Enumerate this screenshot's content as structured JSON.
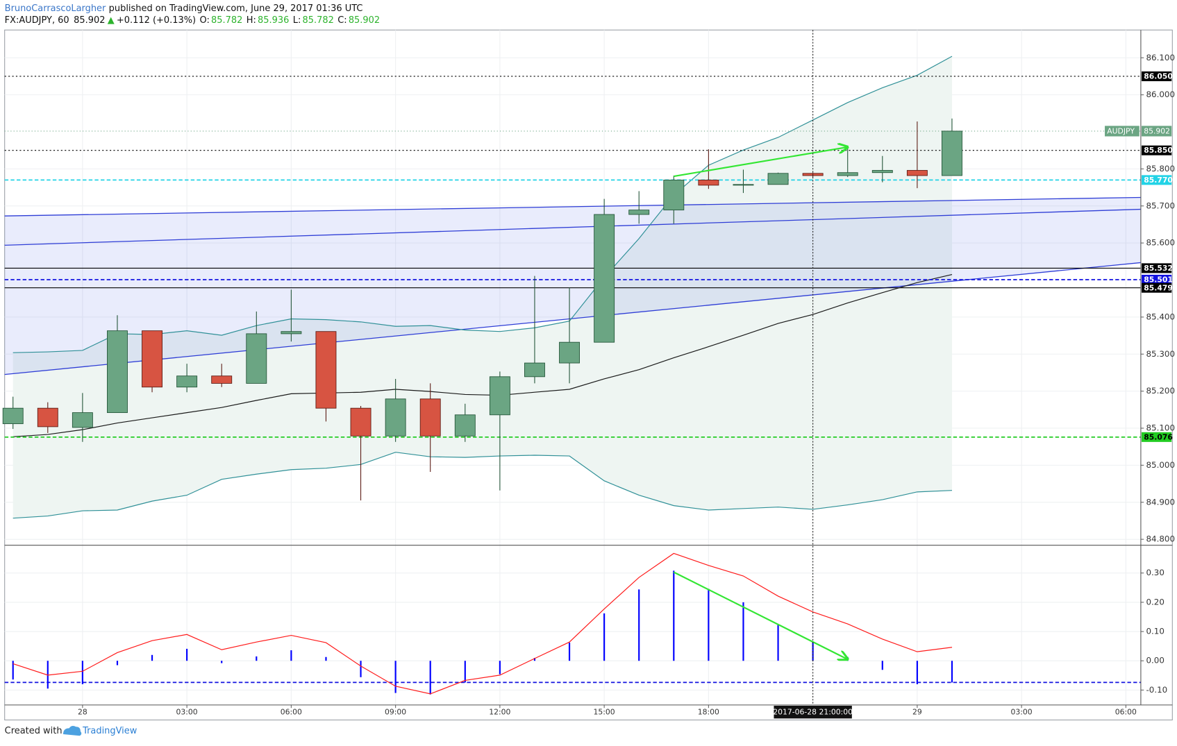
{
  "header": {
    "author": "BrunoCarrascoLargher",
    "published": "published on TradingView.com, June 29, 2017 01:36 UTC",
    "symbol": "FX:AUDJPY, 60",
    "last": "85.902",
    "arrow": "▲",
    "change": "+0.112 (+0.13%)",
    "ohlc": [
      {
        "label": "O:",
        "value": "85.782"
      },
      {
        "label": "H:",
        "value": "85.936"
      },
      {
        "label": "L:",
        "value": "85.782"
      },
      {
        "label": "C:",
        "value": "85.902"
      }
    ]
  },
  "chart_data": [
    {
      "type": "candlestick",
      "x": [
        -2,
        -1,
        0,
        1,
        2,
        3,
        4,
        5,
        6,
        7,
        8,
        9,
        10,
        11,
        12,
        13,
        14,
        15,
        16,
        17,
        18,
        19,
        20,
        21,
        22,
        23,
        24,
        25
      ],
      "open": [
        85.112,
        85.154,
        85.102,
        85.142,
        85.363,
        85.211,
        85.241,
        85.221,
        85.355,
        85.361,
        85.154,
        85.079,
        85.179,
        85.079,
        85.136,
        85.239,
        85.276,
        85.332,
        85.677,
        85.689,
        85.77,
        85.756,
        85.758,
        85.788,
        85.782,
        85.79,
        85.796,
        85.782
      ],
      "high": [
        85.185,
        85.17,
        85.195,
        85.405,
        85.363,
        85.274,
        85.274,
        85.415,
        85.474,
        85.361,
        85.16,
        85.233,
        85.221,
        85.166,
        85.253,
        85.511,
        85.48,
        85.719,
        85.74,
        85.782,
        85.853,
        85.798,
        85.79,
        85.79,
        85.861,
        85.835,
        85.928,
        85.936
      ],
      "low": [
        85.098,
        85.087,
        85.063,
        85.142,
        85.197,
        85.197,
        85.211,
        85.221,
        85.334,
        85.118,
        84.905,
        85.063,
        84.982,
        85.063,
        84.932,
        85.221,
        85.221,
        85.332,
        85.652,
        85.652,
        85.746,
        85.735,
        85.758,
        85.778,
        85.778,
        85.764,
        85.748,
        85.782
      ],
      "close": [
        85.154,
        85.104,
        85.142,
        85.363,
        85.211,
        85.241,
        85.221,
        85.355,
        85.361,
        85.154,
        85.079,
        85.179,
        85.079,
        85.136,
        85.239,
        85.276,
        85.332,
        85.677,
        85.689,
        85.77,
        85.756,
        85.758,
        85.788,
        85.782,
        85.79,
        85.796,
        85.782,
        85.902
      ],
      "up_color": "#6ba583",
      "down_color": "#d75442",
      "up_border": "#225437",
      "down_border": "#5b1a13",
      "series": [
        {
          "color": "#2f9097",
          "values": [
            85.304,
            85.306,
            85.31,
            85.355,
            85.353,
            85.363,
            85.351,
            85.377,
            85.395,
            85.393,
            85.387,
            85.375,
            85.377,
            85.365,
            85.361,
            85.371,
            85.389,
            85.507,
            85.612,
            85.729,
            85.81,
            85.851,
            85.885,
            85.932,
            85.979,
            86.019,
            86.053,
            86.104
          ]
        },
        {
          "color": "#2f9097",
          "values": [
            84.857,
            84.863,
            84.877,
            84.879,
            84.903,
            84.919,
            84.962,
            84.976,
            84.988,
            84.992,
            85.002,
            85.035,
            85.023,
            85.021,
            85.025,
            85.027,
            85.025,
            84.958,
            84.919,
            84.891,
            84.879,
            84.883,
            84.887,
            84.881,
            84.893,
            84.907,
            84.928,
            84.932
          ]
        },
        {
          "color": "#1a1a1a",
          "values": [
            85.077,
            85.083,
            85.096,
            85.114,
            85.128,
            85.142,
            85.156,
            85.175,
            85.193,
            85.195,
            85.197,
            85.205,
            85.199,
            85.191,
            85.189,
            85.197,
            85.205,
            85.233,
            85.258,
            85.29,
            85.32,
            85.351,
            85.383,
            85.407,
            85.438,
            85.466,
            85.493,
            85.515
          ]
        }
      ],
      "band_fill": "#eef5f2",
      "trendlines": [
        {
          "y": [
            85.673,
            85.723
          ],
          "color": "#2e3dd6"
        },
        {
          "y": [
            85.594,
            85.691
          ],
          "color": "#2e3dd6"
        },
        {
          "y": [
            85.245,
            85.547
          ],
          "color": "#2e3dd6"
        }
      ],
      "channel_fill": "rgba(70,100,230,0.12)",
      "levels": [
        {
          "value": 86.05,
          "label": "86.050",
          "color": "#000000",
          "text_color": "#ffffff",
          "style": "dotted"
        },
        {
          "value": 85.85,
          "label": "85.850",
          "color": "#000000",
          "text_color": "#ffffff",
          "style": "dotted"
        },
        {
          "value": 85.77,
          "label": "85.770",
          "color": "#22d3e6",
          "text_color": "#ffffff",
          "style": "dashed"
        },
        {
          "value": 85.532,
          "label": "85.532",
          "color": "#000000",
          "text_color": "#ffffff",
          "style": "solid"
        },
        {
          "value": 85.501,
          "label": "85.501",
          "color": "#1212e0",
          "text_color": "#ffffff",
          "style": "dashed"
        },
        {
          "value": 85.479,
          "label": "85.479",
          "color": "#000000",
          "text_color": "#ffffff",
          "style": "solid"
        },
        {
          "value": 85.076,
          "label": "85.076",
          "color": "#22cc22",
          "text_color": "#000000",
          "style": "dashed"
        }
      ],
      "price_label": {
        "name": "AUDJPY",
        "value": 85.902,
        "label": "85.902",
        "color": "#6ba583"
      },
      "arrows": [
        {
          "x": [
            17,
            22
          ],
          "y": [
            85.78,
            85.859
          ],
          "color": "#33e633"
        }
      ],
      "crosshair": {
        "x": 21,
        "label": "2017-06-28 21:00:00"
      },
      "xlim": [
        -2.24,
        30.43
      ],
      "xticks": [
        {
          "value": 0,
          "label": "28"
        },
        {
          "value": 3,
          "label": "03:00"
        },
        {
          "value": 6,
          "label": "06:00"
        },
        {
          "value": 9,
          "label": "09:00"
        },
        {
          "value": 12,
          "label": "12:00"
        },
        {
          "value": 15,
          "label": "15:00"
        },
        {
          "value": 18,
          "label": "18:00"
        },
        {
          "value": 24,
          "label": "29"
        },
        {
          "value": 27,
          "label": "03:00"
        },
        {
          "value": 30,
          "label": "06:00"
        }
      ],
      "ylim": [
        84.784,
        86.175
      ],
      "yticks": [
        {
          "value": 86.1,
          "label": "86.100"
        },
        {
          "value": 86.0,
          "label": "86.000"
        },
        {
          "value": 85.8,
          "label": "85.800"
        },
        {
          "value": 85.7,
          "label": "85.700"
        },
        {
          "value": 85.6,
          "label": "85.600"
        },
        {
          "value": 85.4,
          "label": "85.400"
        },
        {
          "value": 85.3,
          "label": "85.300"
        },
        {
          "value": 85.2,
          "label": "85.200"
        },
        {
          "value": 85.1,
          "label": "85.100"
        },
        {
          "value": 85.0,
          "label": "85.000"
        },
        {
          "value": 84.9,
          "label": "84.900"
        },
        {
          "value": 84.8,
          "label": "84.800"
        }
      ],
      "grid": true
    },
    {
      "type": "bar",
      "x": [
        -2,
        -1,
        0,
        1,
        2,
        3,
        4,
        5,
        6,
        7,
        8,
        9,
        10,
        11,
        12,
        13,
        14,
        15,
        16,
        17,
        18,
        19,
        20,
        21,
        22,
        23,
        24,
        25
      ],
      "series": [
        {
          "type": "bar",
          "color": "#0000ff",
          "values": [
            -0.064,
            -0.095,
            -0.08,
            -0.015,
            0.02,
            0.041,
            -0.008,
            0.015,
            0.036,
            0.013,
            -0.056,
            -0.11,
            -0.115,
            -0.074,
            -0.046,
            0.01,
            0.062,
            0.162,
            0.244,
            0.308,
            0.246,
            0.2,
            0.126,
            0.064,
            0.013,
            -0.031,
            -0.08,
            -0.074
          ]
        },
        {
          "type": "line",
          "color": "#ff1a1a",
          "values": [
            -0.01,
            -0.049,
            -0.036,
            0.028,
            0.069,
            0.09,
            0.038,
            0.064,
            0.087,
            0.062,
            -0.018,
            -0.087,
            -0.113,
            -0.067,
            -0.049,
            0.008,
            0.064,
            0.177,
            0.285,
            0.367,
            0.326,
            0.29,
            0.221,
            0.167,
            0.126,
            0.074,
            0.031,
            0.046
          ]
        }
      ],
      "levels": [
        {
          "value": -0.074,
          "color": "#1212e0",
          "style": "dashed"
        }
      ],
      "arrows": [
        {
          "x": [
            17,
            22
          ],
          "y": [
            0.303,
            0.005
          ],
          "color": "#33e633"
        }
      ],
      "xlim": [
        -2.24,
        30.43
      ],
      "ylim": [
        -0.151,
        0.395
      ],
      "yticks": [
        {
          "value": 0.3,
          "label": "0.30"
        },
        {
          "value": 0.2,
          "label": "0.20"
        },
        {
          "value": 0.1,
          "label": "0.10"
        },
        {
          "value": 0.0,
          "label": "0.00"
        },
        {
          "value": -0.1,
          "label": "-0.10"
        }
      ],
      "grid": true
    }
  ],
  "footer": {
    "created": "Created with",
    "brand": "TradingView"
  }
}
